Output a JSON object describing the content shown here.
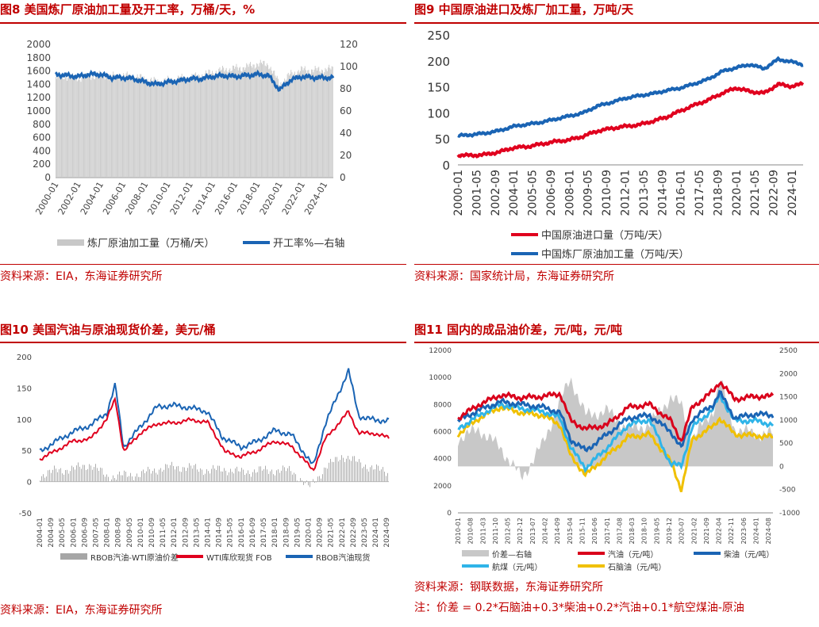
{
  "panels": {
    "p8": {
      "title": "图8 美国炼厂原油加工量及开工率，万桶/天，%",
      "source": "资料来源：EIA，东海证券研究所"
    },
    "p9": {
      "title": "图9 中国原油进口及炼厂加工量，万吨/天",
      "source": "资料来源：国家统计局，东海证券研究所"
    },
    "p10": {
      "title": "图10 美国汽油与原油现货价差，美元/桶",
      "source": "资料来源：EIA，东海证券研究所"
    },
    "p11": {
      "title": "图11 国内的成品油价差，元/吨，元/吨",
      "source": "资料来源：钢联数据，东海证券研究所",
      "note": "注：价差 = 0.2*石脑油+0.3*柴油+0.2*汽油+0.1*航空煤油-原油"
    }
  },
  "chart_data": [
    {
      "id": "fig8",
      "type": "bar+line",
      "title": "美国炼厂原油加工量及开工率，万桶/天，%",
      "x_ticks": [
        "2000-01",
        "2002-01",
        "2004-01",
        "2006-01",
        "2008-01",
        "2010-01",
        "2012-01",
        "2014-01",
        "2016-01",
        "2018-01",
        "2020-01",
        "2022-01",
        "2024-01"
      ],
      "left_axis": {
        "ylim": [
          0,
          2000
        ],
        "ticks": [
          0,
          200,
          400,
          600,
          800,
          1000,
          1200,
          1400,
          1600,
          1800,
          2000
        ]
      },
      "right_axis": {
        "ylim": [
          0,
          120
        ],
        "ticks": [
          0,
          20,
          40,
          60,
          80,
          100,
          120
        ]
      },
      "series": [
        {
          "name": "炼厂原油加工量（万桶/天）",
          "axis": "left",
          "type": "bar",
          "color": "#c8c8c8",
          "x_years": [
            2000,
            2001,
            2002,
            2003,
            2004,
            2005,
            2006,
            2007,
            2008,
            2009,
            2010,
            2011,
            2012,
            2013,
            2014,
            2015,
            2016,
            2017,
            2018,
            2019,
            2020,
            2021,
            2022,
            2023,
            2024.6
          ],
          "values": [
            1510,
            1520,
            1495,
            1520,
            1540,
            1520,
            1530,
            1520,
            1480,
            1440,
            1460,
            1490,
            1500,
            1540,
            1580,
            1620,
            1640,
            1660,
            1710,
            1700,
            1400,
            1560,
            1620,
            1610,
            1630
          ]
        },
        {
          "name": "开工率%—右轴",
          "axis": "right",
          "type": "line",
          "color": "#1a64b4",
          "x_years": [
            2000,
            2001,
            2002,
            2003,
            2004,
            2005,
            2006,
            2007,
            2008,
            2009,
            2010,
            2011,
            2012,
            2013,
            2014,
            2015,
            2016,
            2017,
            2018,
            2019,
            2020,
            2021,
            2022,
            2023,
            2024.6
          ],
          "values": [
            93,
            92,
            91,
            93,
            93,
            90,
            90,
            89,
            86,
            84,
            86,
            87,
            89,
            89,
            91,
            92,
            91,
            92,
            93,
            92,
            79,
            88,
            91,
            90,
            90
          ]
        }
      ]
    },
    {
      "id": "fig9",
      "type": "line",
      "title": "中国原油进口及炼厂加工量，万吨/天",
      "x_ticks": [
        "2000-01",
        "2001-05",
        "2002-09",
        "2004-01",
        "2005-05",
        "2006-09",
        "2008-01",
        "2009-05",
        "2010-09",
        "2012-01",
        "2013-05",
        "2014-09",
        "2016-01",
        "2017-05",
        "2018-09",
        "2020-01",
        "2021-05",
        "2022-09",
        "2024-01"
      ],
      "ylim": [
        0,
        250
      ],
      "y_ticks": [
        0,
        50,
        100,
        150,
        200,
        250
      ],
      "series": [
        {
          "name": "中国原油进口量（万吨/天）",
          "color": "#e0001e",
          "x_years": [
            2000,
            2001,
            2002,
            2003,
            2004,
            2005,
            2006,
            2007,
            2008,
            2009,
            2010,
            2011,
            2012,
            2013,
            2014,
            2015,
            2016,
            2017,
            2018,
            2019,
            2020,
            2021,
            2022,
            2023,
            2024,
            2024.8
          ],
          "values": [
            19,
            18,
            20,
            25,
            33,
            35,
            40,
            45,
            48,
            55,
            65,
            70,
            74,
            77,
            84,
            92,
            104,
            115,
            125,
            138,
            148,
            141,
            138,
            155,
            151,
            156
          ]
        },
        {
          "name": "中国炼厂原油加工量（万吨/天）",
          "color": "#1a64b4",
          "x_years": [
            2000,
            2001,
            2002,
            2003,
            2004,
            2005,
            2006,
            2007,
            2008,
            2009,
            2010,
            2011,
            2012,
            2013,
            2014,
            2015,
            2016,
            2017,
            2018,
            2019,
            2020,
            2021,
            2022,
            2023,
            2024,
            2024.8
          ],
          "values": [
            56,
            58,
            61,
            66,
            74,
            78,
            82,
            88,
            94,
            100,
            113,
            120,
            128,
            133,
            137,
            143,
            148,
            156,
            165,
            180,
            187,
            193,
            185,
            203,
            198,
            193
          ]
        }
      ]
    },
    {
      "id": "fig10",
      "type": "bar+line",
      "title": "美国汽油与原油现货价差，美元/桶",
      "x_ticks": [
        "2004-01",
        "2004-09",
        "2005-05",
        "2006-01",
        "2006-09",
        "2007-05",
        "2008-01",
        "2008-09",
        "2009-05",
        "2010-01",
        "2010-09",
        "2011-05",
        "2012-01",
        "2012-09",
        "2013-05",
        "2014-01",
        "2014-09",
        "2015-05",
        "2016-01",
        "2016-09",
        "2017-05",
        "2018-01",
        "2018-09",
        "2019-05",
        "2020-01",
        "2020-09",
        "2021-05",
        "2022-01",
        "2022-09",
        "2023-05",
        "2024-01",
        "2024-09"
      ],
      "ylim": [
        -50,
        200
      ],
      "y_ticks": [
        -50,
        0,
        50,
        100,
        150,
        200
      ],
      "series": [
        {
          "name": "RBOB汽油-WTI原油价差",
          "type": "bar",
          "color": "#a6a6a6",
          "x_years": [
            2004,
            2005,
            2006,
            2007,
            2008,
            2009,
            2010,
            2011,
            2012,
            2013,
            2014,
            2015,
            2016,
            2017,
            2018,
            2019,
            2020,
            2021,
            2022,
            2023,
            2024,
            2024.8
          ],
          "values": [
            10,
            18,
            20,
            28,
            8,
            10,
            12,
            20,
            24,
            22,
            18,
            20,
            15,
            18,
            18,
            18,
            -10,
            22,
            42,
            30,
            20,
            15
          ]
        },
        {
          "name": "WTI库欣现货 FOB",
          "type": "line",
          "color": "#e0001e",
          "x_years": [
            2004,
            2005,
            2006,
            2007,
            2008,
            2008.5,
            2009,
            2010,
            2011,
            2012,
            2013,
            2014,
            2014.9,
            2015,
            2016,
            2017,
            2018,
            2019,
            2020.3,
            2021,
            2022.4,
            2023,
            2024,
            2024.8
          ],
          "values": [
            36,
            50,
            65,
            68,
            100,
            133,
            48,
            78,
            93,
            94,
            99,
            95,
            55,
            48,
            40,
            50,
            65,
            57,
            18,
            68,
            112,
            78,
            77,
            70
          ]
        },
        {
          "name": "RBOB汽油现货",
          "type": "line",
          "color": "#1a64b4",
          "x_years": [
            2004,
            2005,
            2006,
            2007,
            2008,
            2008.5,
            2009,
            2010,
            2011,
            2012,
            2013,
            2014,
            2014.9,
            2015,
            2016,
            2017,
            2018,
            2019,
            2020.3,
            2021,
            2022.4,
            2023,
            2024,
            2024.8
          ],
          "values": [
            48,
            65,
            80,
            90,
            110,
            155,
            55,
            88,
            120,
            122,
            118,
            112,
            70,
            70,
            55,
            65,
            82,
            75,
            25,
            92,
            178,
            105,
            98,
            98
          ]
        }
      ]
    },
    {
      "id": "fig11",
      "type": "area+line",
      "title": "国内的成品油价差，元/吨，元/吨",
      "x_ticks": [
        "2010-01",
        "2010-08",
        "2011-03",
        "2011-10",
        "2012-05",
        "2012-12",
        "2013-07",
        "2014-02",
        "2014-09",
        "2015-04",
        "2015-11",
        "2016-06",
        "2017-01",
        "2017-08",
        "2018-03",
        "2018-10",
        "2019-05",
        "2019-12",
        "2020-07",
        "2021-02",
        "2021-09",
        "2022-04",
        "2022-11",
        "2023-06",
        "2024-01",
        "2024-08"
      ],
      "left_axis": {
        "ylim": [
          0,
          12000
        ],
        "ticks": [
          0,
          2000,
          4000,
          6000,
          8000,
          10000,
          12000
        ]
      },
      "right_axis": {
        "ylim": [
          -1000,
          2500
        ],
        "ticks": [
          -1000,
          -500,
          0,
          500,
          1000,
          1500,
          2000,
          2500
        ]
      },
      "series": [
        {
          "name": "价差—右轴",
          "axis": "right",
          "type": "area",
          "color": "#c8c8c8",
          "x_years": [
            2010,
            2011,
            2012,
            2013,
            2014,
            2014.8,
            2015.3,
            2016,
            2017,
            2018,
            2019,
            2020,
            2020.5,
            2021,
            2022,
            2022.3,
            2023,
            2024,
            2024.8
          ],
          "values": [
            600,
            800,
            400,
            -250,
            500,
            1400,
            1900,
            1100,
            1200,
            800,
            900,
            1500,
            1300,
            600,
            1200,
            1900,
            800,
            700,
            700
          ]
        },
        {
          "name": "汽油（元/吨）",
          "axis": "left",
          "type": "line",
          "color": "#d9001b",
          "x_years": [
            2010,
            2011,
            2012,
            2013,
            2014,
            2014.8,
            2015.3,
            2016,
            2017,
            2018,
            2019,
            2020,
            2020.5,
            2021,
            2022,
            2022.3,
            2023,
            2024,
            2024.8
          ],
          "values": [
            7000,
            8000,
            8700,
            8500,
            8600,
            8800,
            6800,
            6200,
            6500,
            7800,
            8000,
            6800,
            5300,
            7800,
            9000,
            9700,
            8400,
            8600,
            8600
          ]
        },
        {
          "name": "柴油（元/吨）",
          "axis": "left",
          "type": "line",
          "color": "#1a64b4",
          "x_years": [
            2010,
            2011,
            2012,
            2013,
            2014,
            2014.8,
            2015.3,
            2016,
            2017,
            2018,
            2019,
            2020,
            2020.5,
            2021,
            2022,
            2022.3,
            2023,
            2024,
            2024.8
          ],
          "values": [
            6800,
            7600,
            8200,
            8000,
            7800,
            7400,
            5400,
            4600,
            5800,
            7000,
            7200,
            6000,
            4800,
            6900,
            8000,
            8900,
            7000,
            7300,
            7200
          ]
        },
        {
          "name": "航煤（元/吨）",
          "axis": "left",
          "type": "line",
          "color": "#2fb4e8",
          "x_years": [
            2010,
            2011,
            2012,
            2013,
            2014,
            2014.8,
            2015.3,
            2016,
            2017,
            2018,
            2019,
            2020,
            2020.5,
            2021,
            2022,
            2022.3,
            2023,
            2024,
            2024.8
          ],
          "values": [
            6200,
            7200,
            8000,
            7700,
            7500,
            7000,
            4800,
            3300,
            4800,
            6500,
            6900,
            3600,
            3500,
            6300,
            7700,
            8700,
            6800,
            6800,
            6500
          ]
        },
        {
          "name": "石脑油（元/吨）",
          "axis": "left",
          "type": "line",
          "color": "#f0c000",
          "x_years": [
            2010,
            2011,
            2012,
            2013,
            2014,
            2014.8,
            2015.3,
            2016,
            2017,
            2018,
            2019,
            2020,
            2020.5,
            2021,
            2022,
            2022.3,
            2023,
            2024,
            2024.8
          ],
          "values": [
            5800,
            7000,
            7800,
            7400,
            7200,
            6500,
            4200,
            2800,
            4200,
            5600,
            5800,
            3800,
            1700,
            5400,
            6400,
            7000,
            5800,
            5700,
            5600
          ]
        }
      ]
    }
  ]
}
